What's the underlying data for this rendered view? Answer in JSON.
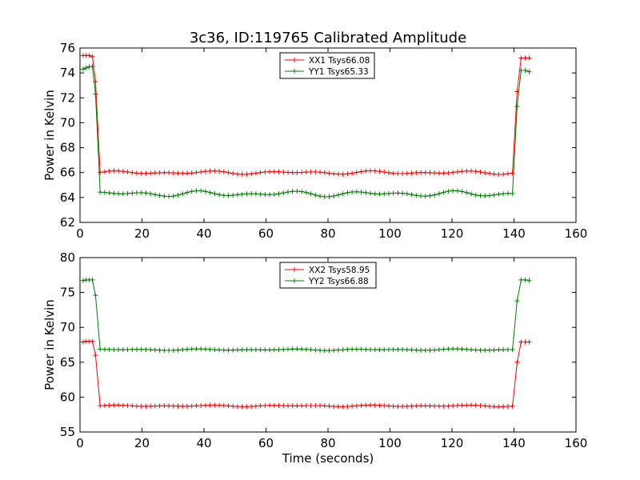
{
  "chart_data": [
    {
      "type": "line",
      "title": "3c36, ID:119765 Calibrated Amplitude",
      "xlabel": "",
      "ylabel": "Power in Kelvin",
      "xlim": [
        0,
        160
      ],
      "ylim": [
        62,
        76
      ],
      "xticks": [
        "0",
        "20",
        "40",
        "60",
        "80",
        "100",
        "120",
        "140",
        "160"
      ],
      "yticks": [
        "62",
        "64",
        "66",
        "68",
        "70",
        "72",
        "74",
        "76"
      ],
      "grid": false,
      "legend_position": "top-center",
      "series": [
        {
          "name": "XX1 Tsys66.08",
          "color": "#ff0000",
          "plateau": 66.0,
          "start": [
            75.4,
            75.4,
            75.4,
            75.3,
            73.3
          ],
          "end": [
            72.5,
            75.2,
            75.2,
            75.2
          ],
          "wiggle": 0.15
        },
        {
          "name": "YY1 Tsys65.33",
          "color": "#008000",
          "plateau": 64.3,
          "start": [
            74.3,
            74.4,
            74.5,
            74.5,
            72.3
          ],
          "end": [
            71.3,
            74.2,
            74.2,
            74.1
          ],
          "wiggle": 0.25
        }
      ]
    },
    {
      "type": "line",
      "title": "",
      "xlabel": "Time (seconds)",
      "ylabel": "Power in Kelvin",
      "xlim": [
        0,
        160
      ],
      "ylim": [
        55,
        80
      ],
      "xticks": [
        "0",
        "20",
        "40",
        "60",
        "80",
        "100",
        "120",
        "140",
        "160"
      ],
      "yticks": [
        "55",
        "60",
        "65",
        "70",
        "75",
        "80"
      ],
      "grid": false,
      "legend_position": "top-center",
      "series": [
        {
          "name": "XX2 Tsys58.95",
          "color": "#ff0000",
          "plateau": 58.75,
          "start": [
            67.9,
            68.0,
            68.0,
            68.0,
            66.0
          ],
          "end": [
            65.0,
            67.9,
            67.9,
            67.9
          ],
          "wiggle": 0.12
        },
        {
          "name": "YY2 Tsys66.88",
          "color": "#008000",
          "plateau": 66.8,
          "start": [
            76.7,
            76.8,
            76.8,
            76.8,
            74.6
          ],
          "end": [
            73.8,
            76.8,
            76.8,
            76.7
          ],
          "wiggle": 0.12
        }
      ]
    }
  ]
}
